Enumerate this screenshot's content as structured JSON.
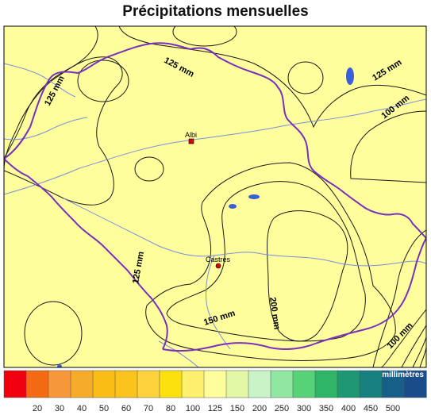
{
  "title": "Précipitations mensuelles",
  "contour_labels": [
    "125 mm",
    "125 mm",
    "125 mm",
    "100 mm",
    "125 mm",
    "150 mm",
    "200 mm",
    "100 mm"
  ],
  "cities": [
    {
      "name": "Albi",
      "marker": "square"
    },
    {
      "name": "Castres",
      "marker": "circle"
    }
  ],
  "legend": {
    "unit": "millimètres",
    "classes": [
      {
        "color": "#f0000e",
        "label": ""
      },
      {
        "color": "#f46a12",
        "label": "20"
      },
      {
        "color": "#f6983a",
        "label": "30"
      },
      {
        "color": "#f7ab2a",
        "label": "40"
      },
      {
        "color": "#f9bd15",
        "label": "50"
      },
      {
        "color": "#fbc31d",
        "label": "60"
      },
      {
        "color": "#fdd23a",
        "label": "70"
      },
      {
        "color": "#fde10f",
        "label": "80"
      },
      {
        "color": "#fdf06c",
        "label": "100"
      },
      {
        "color": "#fefe9c",
        "label": "125"
      },
      {
        "color": "#e1f7a5",
        "label": "150"
      },
      {
        "color": "#c9f4c8",
        "label": "200"
      },
      {
        "color": "#8fe7a2",
        "label": "250"
      },
      {
        "color": "#57d277",
        "label": "300"
      },
      {
        "color": "#2fb568",
        "label": "350"
      },
      {
        "color": "#1d9774",
        "label": "400"
      },
      {
        "color": "#17807e",
        "label": "450"
      },
      {
        "color": "#165f88",
        "label": "500"
      },
      {
        "color": "#1a4c8a",
        "label": ""
      }
    ]
  }
}
